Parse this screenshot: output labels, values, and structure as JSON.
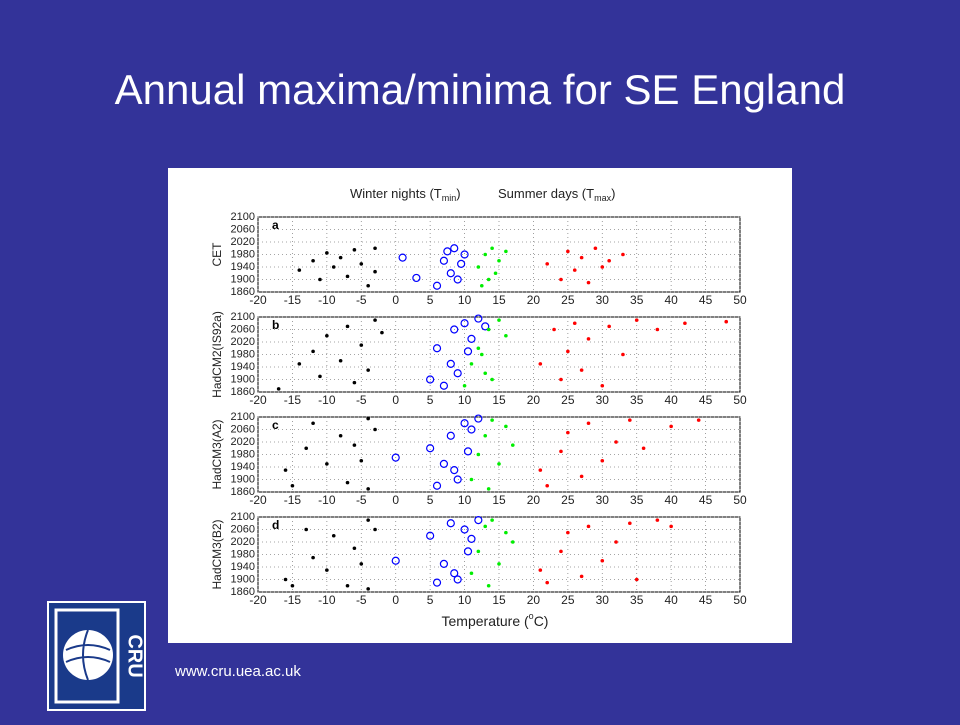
{
  "slide": {
    "title": "Annual maxima/minima for SE England",
    "url": "www.cru.uea.ac.uk",
    "logo": "CRU"
  },
  "figure": {
    "header_left": [
      "Winter nights (T",
      "min",
      ")"
    ],
    "header_right": [
      "Summer days (T",
      "max",
      ")"
    ],
    "xlabel": [
      "Temperature (",
      "o",
      "C)"
    ]
  },
  "chart_data": [
    {
      "type": "scatter",
      "panel": "a",
      "ylabel": "CET",
      "xlim": [
        -20,
        50
      ],
      "ylim": [
        1860,
        2100
      ],
      "xticks": [
        -20,
        -15,
        -10,
        -5,
        0,
        5,
        10,
        15,
        20,
        25,
        30,
        35,
        40,
        45,
        50
      ],
      "yticks": [
        1860,
        1900,
        1940,
        1980,
        2020,
        2060,
        2100
      ],
      "grid": true,
      "series": [
        {
          "marker": "dot",
          "color": "#000000",
          "x": [
            -14,
            -12,
            -11,
            -10,
            -9,
            -8,
            -7,
            -6,
            -5,
            -4,
            -3,
            -3
          ],
          "values": [
            1930,
            1960,
            1900,
            1985,
            1940,
            1970,
            1910,
            1995,
            1950,
            1880,
            2000,
            1925
          ]
        },
        {
          "marker": "circle",
          "color": "#0000ff",
          "x": [
            1,
            3,
            6,
            7,
            7.5,
            8,
            8.5,
            9,
            9.5,
            10
          ],
          "values": [
            1970,
            1905,
            1880,
            1960,
            1990,
            1920,
            2000,
            1900,
            1950,
            1980
          ]
        },
        {
          "marker": "dot",
          "color": "#00ee00",
          "x": [
            12,
            13,
            13.5,
            14,
            14.5,
            15,
            16,
            12.5
          ],
          "values": [
            1940,
            1980,
            1900,
            2000,
            1920,
            1960,
            1990,
            1880
          ]
        },
        {
          "marker": "dot",
          "color": "#ff0000",
          "x": [
            22,
            24,
            25,
            26,
            27,
            28,
            29,
            30,
            31,
            33
          ],
          "values": [
            1950,
            1900,
            1990,
            1930,
            1970,
            1890,
            2000,
            1940,
            1960,
            1980
          ]
        }
      ]
    },
    {
      "type": "scatter",
      "panel": "b",
      "ylabel": "HadCM2(IS92a)",
      "xlim": [
        -20,
        50
      ],
      "ylim": [
        1860,
        2100
      ],
      "xticks": [
        -20,
        -15,
        -10,
        -5,
        0,
        5,
        10,
        15,
        20,
        25,
        30,
        35,
        40,
        45,
        50
      ],
      "yticks": [
        1860,
        1900,
        1940,
        1980,
        2020,
        2060,
        2100
      ],
      "grid": true,
      "series": [
        {
          "marker": "dot",
          "color": "#000000",
          "x": [
            -17,
            -14,
            -12,
            -11,
            -10,
            -8,
            -7,
            -6,
            -5,
            -4,
            -3,
            -2
          ],
          "values": [
            1870,
            1950,
            1990,
            1910,
            2040,
            1960,
            2070,
            1890,
            2010,
            1930,
            2090,
            2050
          ]
        },
        {
          "marker": "circle",
          "color": "#0000ff",
          "x": [
            5,
            6,
            7,
            8,
            8.5,
            9,
            10,
            10.5,
            11,
            12,
            13
          ],
          "values": [
            1900,
            2000,
            1880,
            1950,
            2060,
            1920,
            2080,
            1990,
            2030,
            2095,
            2070
          ]
        },
        {
          "marker": "dot",
          "color": "#00ee00",
          "x": [
            10,
            11,
            12,
            13,
            13.5,
            14,
            15,
            16,
            12.5
          ],
          "values": [
            1880,
            1950,
            2000,
            1920,
            2060,
            1900,
            2090,
            2040,
            1980
          ]
        },
        {
          "marker": "dot",
          "color": "#ff0000",
          "x": [
            21,
            23,
            24,
            25,
            26,
            27,
            28,
            30,
            31,
            33,
            35,
            38,
            42,
            48
          ],
          "values": [
            1950,
            2060,
            1900,
            1990,
            2080,
            1930,
            2030,
            1880,
            2070,
            1980,
            2090,
            2060,
            2080,
            2085
          ]
        }
      ]
    },
    {
      "type": "scatter",
      "panel": "c",
      "ylabel": "HadCM3(A2)",
      "xlim": [
        -20,
        50
      ],
      "ylim": [
        1860,
        2100
      ],
      "xticks": [
        -20,
        -15,
        -10,
        -5,
        0,
        5,
        10,
        15,
        20,
        25,
        30,
        35,
        40,
        45,
        50
      ],
      "yticks": [
        1860,
        1900,
        1940,
        1980,
        2020,
        2060,
        2100
      ],
      "grid": true,
      "series": [
        {
          "marker": "dot",
          "color": "#000000",
          "x": [
            -16,
            -15,
            -13,
            -12,
            -10,
            -8,
            -7,
            -6,
            -5,
            -4,
            -4,
            -3
          ],
          "values": [
            1930,
            1880,
            2000,
            2080,
            1950,
            2040,
            1890,
            2010,
            1960,
            2095,
            1870,
            2060
          ]
        },
        {
          "marker": "circle",
          "color": "#0000ff",
          "x": [
            0,
            5,
            6,
            7,
            8,
            9,
            10,
            10.5,
            11,
            12,
            8.5
          ],
          "values": [
            1970,
            2000,
            1880,
            1950,
            2040,
            1900,
            2080,
            1990,
            2060,
            2095,
            1930
          ]
        },
        {
          "marker": "dot",
          "color": "#00ee00",
          "x": [
            11,
            12,
            13,
            13.5,
            14,
            15,
            16,
            17
          ],
          "values": [
            1900,
            1980,
            2040,
            1870,
            2090,
            1950,
            2070,
            2010
          ]
        },
        {
          "marker": "dot",
          "color": "#ff0000",
          "x": [
            21,
            22,
            24,
            25,
            27,
            28,
            30,
            32,
            34,
            36,
            40,
            44
          ],
          "values": [
            1930,
            1880,
            1990,
            2050,
            1910,
            2080,
            1960,
            2020,
            2090,
            2000,
            2070,
            2090
          ]
        }
      ]
    },
    {
      "type": "scatter",
      "panel": "d",
      "ylabel": "HadCM3(B2)",
      "xlim": [
        -20,
        50
      ],
      "ylim": [
        1860,
        2100
      ],
      "xticks": [
        -20,
        -15,
        -10,
        -5,
        0,
        5,
        10,
        15,
        20,
        25,
        30,
        35,
        40,
        45,
        50
      ],
      "yticks": [
        1860,
        1900,
        1940,
        1980,
        2020,
        2060,
        2100
      ],
      "grid": true,
      "series": [
        {
          "marker": "dot",
          "color": "#000000",
          "x": [
            -16,
            -15,
            -13,
            -12,
            -10,
            -9,
            -7,
            -6,
            -5,
            -4,
            -4,
            -3
          ],
          "values": [
            1900,
            1880,
            2060,
            1970,
            1930,
            2040,
            1880,
            2000,
            1950,
            2090,
            1870,
            2060
          ]
        },
        {
          "marker": "circle",
          "color": "#0000ff",
          "x": [
            0,
            5,
            6,
            7,
            8,
            9,
            10,
            10.5,
            11,
            12,
            8.5
          ],
          "values": [
            1960,
            2040,
            1890,
            1950,
            2080,
            1900,
            2060,
            1990,
            2030,
            2090,
            1920
          ]
        },
        {
          "marker": "dot",
          "color": "#00ee00",
          "x": [
            11,
            12,
            13,
            13.5,
            14,
            15,
            16,
            17
          ],
          "values": [
            1920,
            1990,
            2070,
            1880,
            2090,
            1950,
            2050,
            2020
          ]
        },
        {
          "marker": "dot",
          "color": "#ff0000",
          "x": [
            21,
            22,
            24,
            25,
            27,
            28,
            30,
            32,
            34,
            35,
            38,
            40
          ],
          "values": [
            1930,
            1890,
            1990,
            2050,
            1910,
            2070,
            1960,
            2020,
            2080,
            1900,
            2090,
            2070
          ]
        }
      ]
    }
  ]
}
